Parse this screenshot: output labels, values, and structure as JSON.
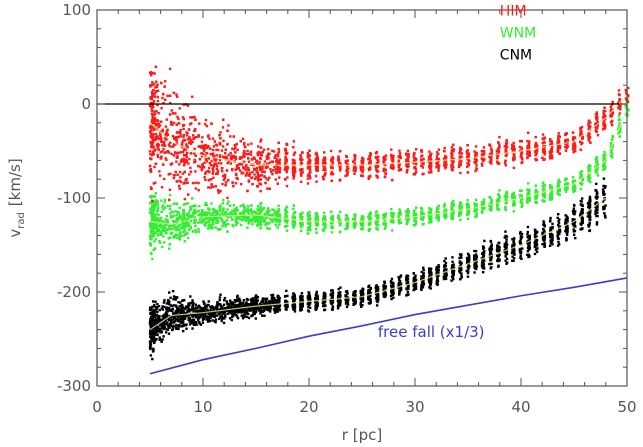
{
  "chart_data": {
    "type": "scatter",
    "title": "",
    "xlabel": "r [pc]",
    "ylabel": "v",
    "ylabel_subscript": "rad",
    "ylabel_unit": "[km/s]",
    "xlim": [
      0,
      50
    ],
    "ylim": [
      -300,
      100
    ],
    "xticks": [
      0,
      10,
      20,
      30,
      40,
      50
    ],
    "xtick_labels": [
      "0",
      "10",
      "20",
      "30",
      "40",
      "50"
    ],
    "yticks": [
      -300,
      -200,
      -100,
      0,
      100
    ],
    "ytick_labels": [
      "-300",
      "-200",
      "-100",
      "0",
      "100"
    ],
    "grid": false,
    "legend_position": "top-right",
    "reference_line": {
      "y": 0,
      "color": "#000000"
    },
    "series": [
      {
        "name": "HIM",
        "color": "#ff1a1a",
        "kind": "scatter",
        "mean_x": [
          5,
          7,
          10,
          15,
          20,
          25,
          30,
          35,
          40,
          45,
          48,
          50
        ],
        "mean_y": [
          -20,
          -40,
          -55,
          -65,
          -65,
          -65,
          -62,
          -58,
          -50,
          -40,
          -15,
          10
        ],
        "spread_y": [
          60,
          55,
          40,
          25,
          15,
          14,
          13,
          13,
          12,
          12,
          12,
          10
        ]
      },
      {
        "name": "WNM",
        "color": "#33ee33",
        "kind": "scatter",
        "mean_x": [
          5,
          7,
          10,
          15,
          20,
          25,
          30,
          35,
          40,
          45,
          48,
          50
        ],
        "mean_y": [
          -125,
          -128,
          -120,
          -118,
          -125,
          -125,
          -120,
          -112,
          -100,
          -85,
          -60,
          -5
        ],
        "spread_y": [
          30,
          22,
          15,
          12,
          10,
          10,
          9,
          9,
          9,
          9,
          10,
          10
        ]
      },
      {
        "name": "CNM",
        "color": "#000000",
        "kind": "scatter",
        "mean_x": [
          5,
          7,
          10,
          15,
          20,
          25,
          30,
          35,
          40,
          45,
          48
        ],
        "mean_y": [
          -240,
          -225,
          -222,
          -215,
          -210,
          -205,
          -190,
          -170,
          -150,
          -125,
          -100
        ],
        "spread_y": [
          25,
          18,
          12,
          10,
          9,
          10,
          11,
          12,
          14,
          16,
          18
        ]
      }
    ],
    "free_fall": {
      "label": "free fall (x1/3)",
      "color": "#3b3bd0",
      "x": [
        5,
        10,
        15,
        20,
        25,
        30,
        35,
        40,
        45,
        50
      ],
      "y": [
        -287,
        -272,
        -260,
        -247,
        -236,
        -224,
        -214,
        -204,
        -195,
        -185
      ]
    }
  }
}
